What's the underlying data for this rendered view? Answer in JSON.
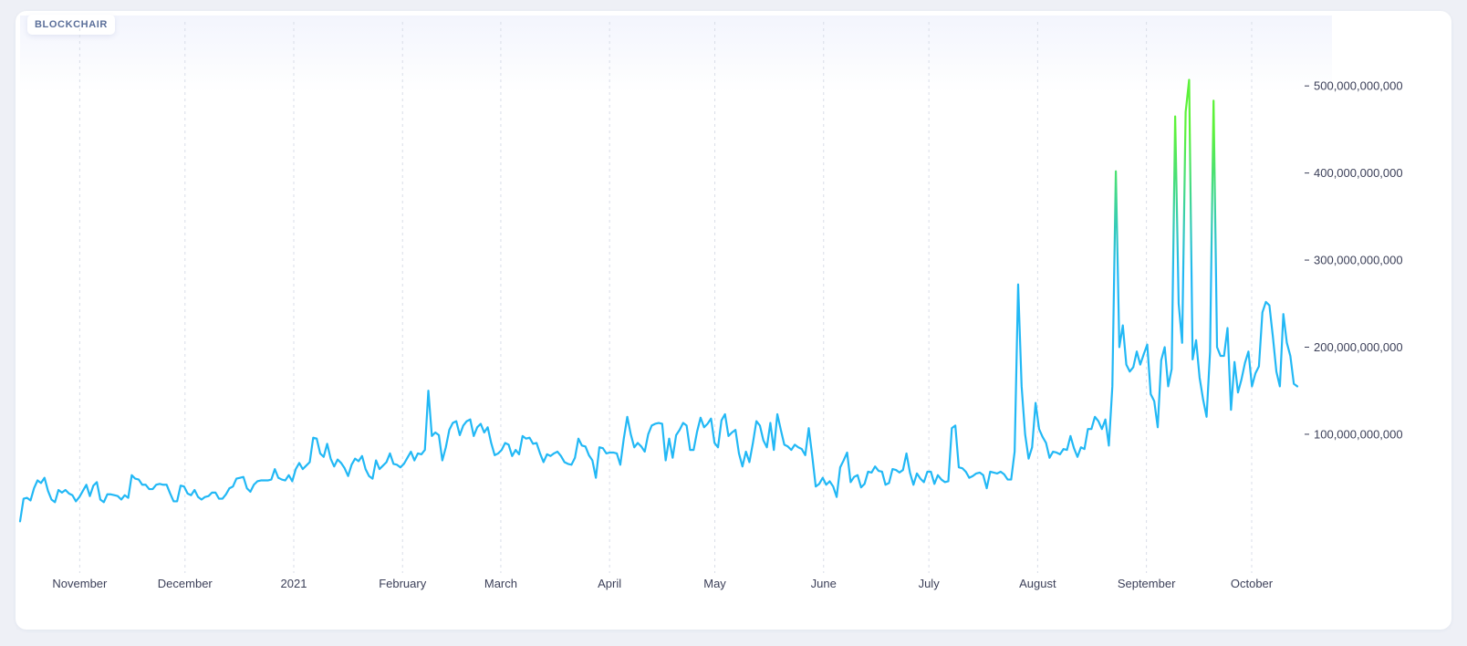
{
  "brand": {
    "label": "BLOCKCHAIR"
  },
  "colors": {
    "line_low": "#22b8f5",
    "line_high": "#5cf23a",
    "grid": "#d9dde8"
  },
  "chart_data": {
    "type": "line",
    "title": "",
    "xlabel": "",
    "ylabel": "",
    "x_start": "2020-10-15",
    "x_end": "2021-10-14",
    "ylim": [
      -30000000000,
      540000000000
    ],
    "y_ticks": [
      100000000000,
      200000000000,
      300000000000,
      400000000000,
      500000000000
    ],
    "y_tick_labels": [
      "100,000,000,000",
      "200,000,000,000",
      "300,000,000,000",
      "400,000,000,000",
      "500,000,000,000"
    ],
    "x_ticks": [
      "2020-11-01",
      "2020-12-01",
      "2021-01-01",
      "2021-02-01",
      "2021-03-01",
      "2021-04-01",
      "2021-05-01",
      "2021-06-01",
      "2021-07-01",
      "2021-08-01",
      "2021-09-01",
      "2021-10-01"
    ],
    "x_tick_labels": [
      "November",
      "December",
      "2021",
      "February",
      "March",
      "April",
      "May",
      "June",
      "July",
      "August",
      "September",
      "October"
    ],
    "grid": "vertical dashed",
    "legend": "none",
    "series": [
      {
        "values": [
          0,
          26000000000,
          27000000000,
          24000000000,
          38000000000,
          47000000000,
          44000000000,
          50000000000,
          35000000000,
          25000000000,
          22000000000,
          36000000000,
          33000000000,
          36000000000,
          32000000000,
          30000000000,
          23000000000,
          28000000000,
          35000000000,
          42000000000,
          29000000000,
          41000000000,
          45000000000,
          25000000000,
          22000000000,
          31000000000,
          31000000000,
          30000000000,
          29000000000,
          25000000000,
          30000000000,
          27000000000,
          53000000000,
          49000000000,
          48000000000,
          42000000000,
          42000000000,
          37000000000,
          37000000000,
          42000000000,
          43000000000,
          42000000000,
          42000000000,
          32000000000,
          23000000000,
          23000000000,
          41000000000,
          40000000000,
          32000000000,
          30000000000,
          36000000000,
          28000000000,
          25000000000,
          28000000000,
          29000000000,
          33000000000,
          33000000000,
          26000000000,
          26000000000,
          31000000000,
          38000000000,
          40000000000,
          49000000000,
          50000000000,
          51000000000,
          38000000000,
          34000000000,
          42000000000,
          46000000000,
          47000000000,
          47000000000,
          47000000000,
          48000000000,
          60000000000,
          50000000000,
          48000000000,
          47000000000,
          53000000000,
          46000000000,
          60000000000,
          67000000000,
          60000000000,
          64000000000,
          68000000000,
          96000000000,
          95000000000,
          78000000000,
          74000000000,
          89000000000,
          72000000000,
          63000000000,
          71000000000,
          67000000000,
          61000000000,
          52000000000,
          65000000000,
          72000000000,
          69000000000,
          75000000000,
          60000000000,
          52000000000,
          49000000000,
          70000000000,
          60000000000,
          64000000000,
          68000000000,
          78000000000,
          66000000000,
          65000000000,
          62000000000,
          66000000000,
          73000000000,
          80000000000,
          70000000000,
          78000000000,
          77000000000,
          82000000000,
          150000000000,
          98000000000,
          102000000000,
          99000000000,
          70000000000,
          85000000000,
          105000000000,
          113000000000,
          115000000000,
          99000000000,
          110000000000,
          115000000000,
          117000000000,
          98000000000,
          108000000000,
          112000000000,
          102000000000,
          108000000000,
          90000000000,
          76000000000,
          78000000000,
          82000000000,
          90000000000,
          88000000000,
          75000000000,
          82000000000,
          77000000000,
          98000000000,
          95000000000,
          96000000000,
          89000000000,
          90000000000,
          78000000000,
          68000000000,
          77000000000,
          75000000000,
          78000000000,
          80000000000,
          75000000000,
          68000000000,
          66000000000,
          65000000000,
          73000000000,
          95000000000,
          87000000000,
          86000000000,
          76000000000,
          70000000000,
          50000000000,
          85000000000,
          84000000000,
          78000000000,
          79000000000,
          79000000000,
          78000000000,
          65000000000,
          95000000000,
          120000000000,
          100000000000,
          85000000000,
          90000000000,
          86000000000,
          80000000000,
          100000000000,
          110000000000,
          112000000000,
          113000000000,
          112000000000,
          70000000000,
          95000000000,
          73000000000,
          99000000000,
          105000000000,
          113000000000,
          110000000000,
          82000000000,
          82000000000,
          103000000000,
          119000000000,
          108000000000,
          112000000000,
          118000000000,
          90000000000,
          85000000000,
          116000000000,
          123000000000,
          98000000000,
          102000000000,
          105000000000,
          78000000000,
          63000000000,
          80000000000,
          68000000000,
          90000000000,
          115000000000,
          110000000000,
          93000000000,
          85000000000,
          113000000000,
          82000000000,
          123000000000,
          105000000000,
          88000000000,
          86000000000,
          82000000000,
          88000000000,
          85000000000,
          83000000000,
          76000000000,
          107000000000,
          75000000000,
          40000000000,
          43000000000,
          50000000000,
          42000000000,
          46000000000,
          40000000000,
          28000000000,
          62000000000,
          70000000000,
          79000000000,
          45000000000,
          51000000000,
          53000000000,
          39000000000,
          43000000000,
          57000000000,
          56000000000,
          63000000000,
          58000000000,
          57000000000,
          42000000000,
          44000000000,
          60000000000,
          59000000000,
          56000000000,
          59000000000,
          78000000000,
          56000000000,
          42000000000,
          55000000000,
          49000000000,
          45000000000,
          57000000000,
          57000000000,
          43000000000,
          53000000000,
          48000000000,
          45000000000,
          46000000000,
          107000000000,
          110000000000,
          62000000000,
          61000000000,
          57000000000,
          50000000000,
          52000000000,
          55000000000,
          56000000000,
          53000000000,
          38000000000,
          57000000000,
          56000000000,
          55000000000,
          57000000000,
          54000000000,
          48000000000,
          48000000000,
          80000000000,
          272000000000,
          155000000000,
          100000000000,
          72000000000,
          85000000000,
          136000000000,
          106000000000,
          97000000000,
          90000000000,
          73000000000,
          80000000000,
          79000000000,
          77000000000,
          83000000000,
          82000000000,
          98000000000,
          84000000000,
          74000000000,
          85000000000,
          83000000000,
          106000000000,
          106000000000,
          120000000000,
          115000000000,
          106000000000,
          117000000000,
          87000000000,
          155000000000,
          402000000000,
          200000000000,
          225000000000,
          180000000000,
          172000000000,
          177000000000,
          195000000000,
          180000000000,
          192000000000,
          203000000000,
          146000000000,
          138000000000,
          108000000000,
          185000000000,
          200000000000,
          155000000000,
          175000000000,
          465000000000,
          250000000000,
          205000000000,
          470000000000,
          507000000000,
          186000000000,
          208000000000,
          165000000000,
          140000000000,
          120000000000,
          195000000000,
          483000000000,
          200000000000,
          190000000000,
          190000000000,
          222000000000,
          128000000000,
          183000000000,
          148000000000,
          163000000000,
          182000000000,
          195000000000,
          155000000000,
          170000000000,
          178000000000,
          240000000000,
          252000000000,
          248000000000,
          212000000000,
          172000000000,
          155000000000,
          238000000000,
          205000000000,
          190000000000,
          158000000000,
          155000000000
        ]
      }
    ]
  }
}
